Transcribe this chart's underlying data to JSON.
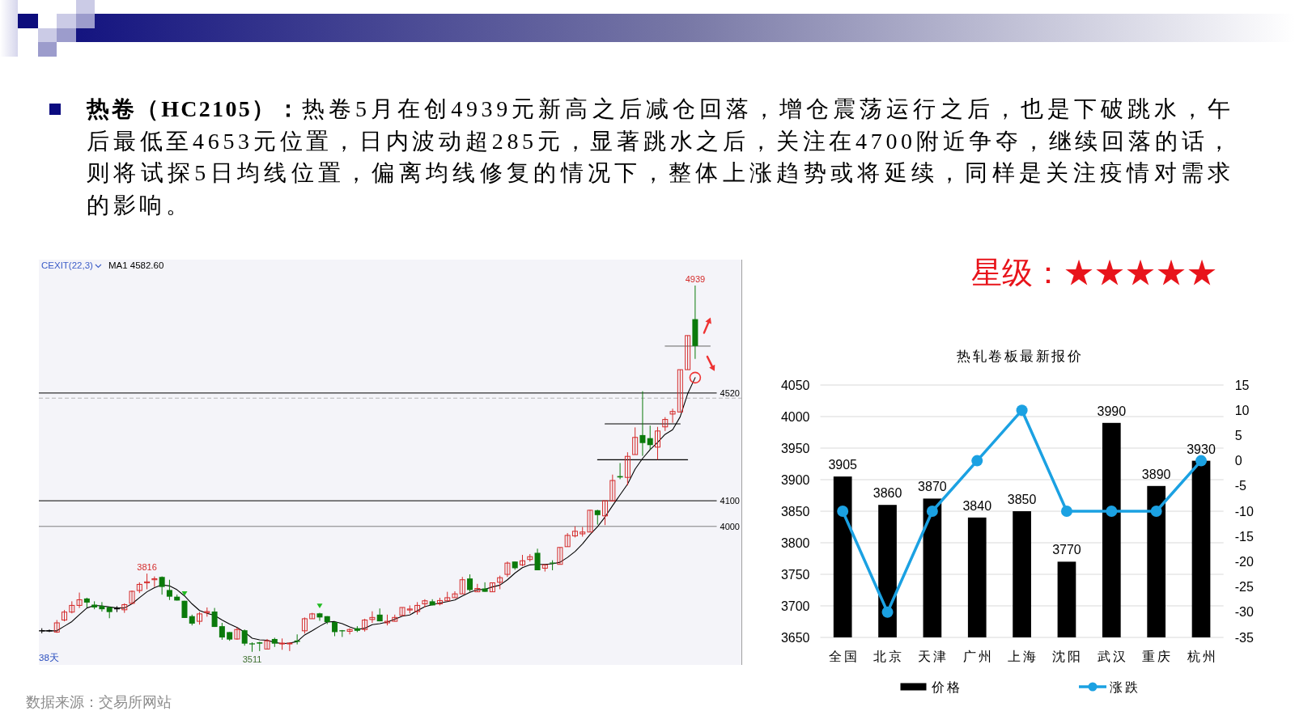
{
  "chart_data": [
    {
      "type": "other",
      "title": "热卷（HC2105）：",
      "annotations": [
        "热卷5月在创4939元新高之后减仓回落，增仓震荡运行之后，也是下破跳水，午后最低至4653元位置，日内波动超285元，显著跳水之后，关注在4700附近争夺，继续回落的话，则将试探5日均线位置，偏离均线修复的情况下，整体上涨趋势或将延续，同样是关注疫情对需求的影响。",
        "星级：★★★★★",
        "数据来源：交易所网站"
      ]
    },
    {
      "type": "candlestick",
      "title": "CEXIT(22,3)",
      "xlabel": "38天",
      "categories": [
        null,
        null,
        null,
        null,
        null,
        null,
        null,
        null,
        null,
        null,
        null,
        null,
        null,
        null,
        null,
        null,
        null,
        null,
        null,
        null,
        null,
        null,
        null,
        null,
        null,
        null,
        null,
        null,
        null,
        null,
        null,
        null,
        null,
        null,
        null,
        null,
        null,
        null,
        null,
        null,
        null,
        null,
        null,
        null,
        null,
        null,
        null,
        null,
        null,
        null,
        null,
        null,
        null,
        null,
        null,
        null,
        null,
        null,
        null,
        null,
        null,
        null,
        null,
        null,
        null,
        null,
        null,
        null,
        null,
        null,
        null,
        null,
        null,
        null,
        null,
        null,
        null,
        null,
        null,
        null,
        null,
        null,
        null,
        null,
        null,
        null,
        null,
        null,
        null,
        null,
        null,
        null
      ],
      "ohlc": [
        [
          3593,
          3603,
          3583,
          3593
        ],
        [
          3593,
          3598,
          3588,
          3593
        ],
        [
          3588,
          3635,
          3585,
          3624
        ],
        [
          3635,
          3674,
          3630,
          3666
        ],
        [
          3666,
          3708,
          3661,
          3692
        ],
        [
          3692,
          3742,
          3682,
          3714
        ],
        [
          3719,
          3722,
          3684,
          3703
        ],
        [
          3695,
          3708,
          3677,
          3684
        ],
        [
          3690,
          3705,
          3668,
          3677
        ],
        [
          3685,
          3687,
          3642,
          3666
        ],
        [
          3679,
          3689,
          3666,
          3679
        ],
        [
          3675,
          3700,
          3663,
          3695
        ],
        [
          3700,
          3750,
          3697,
          3747
        ],
        [
          3750,
          3782,
          3740,
          3774
        ],
        [
          3780,
          3816,
          3755,
          3784
        ],
        [
          3792,
          3805,
          3764,
          3796
        ],
        [
          3803,
          3805,
          3734,
          3764
        ],
        [
          3752,
          3792,
          3713,
          3726
        ],
        [
          3726,
          3734,
          3711,
          3711
        ],
        [
          3710,
          3710,
          3643,
          3643
        ],
        [
          3650,
          3656,
          3614,
          3621
        ],
        [
          3630,
          3666,
          3617,
          3659
        ],
        [
          3664,
          3684,
          3648,
          3668
        ],
        [
          3668,
          3682,
          3608,
          3608
        ],
        [
          3611,
          3624,
          3558,
          3567
        ],
        [
          3588,
          3588,
          3554,
          3559
        ],
        [
          3561,
          3606,
          3558,
          3598
        ],
        [
          3595,
          3598,
          3535,
          3543
        ],
        [
          3544,
          3548,
          3511,
          3540
        ],
        [
          3548,
          3550,
          3514,
          3543
        ],
        [
          3522,
          3561,
          3522,
          3554
        ],
        [
          3561,
          3566,
          3530,
          3543
        ],
        [
          3542,
          3563,
          3519,
          3545
        ],
        [
          3542,
          3548,
          3514,
          3545
        ],
        [
          3555,
          3579,
          3540,
          3550
        ],
        [
          3593,
          3645,
          3582,
          3640
        ],
        [
          3640,
          3663,
          3640,
          3659
        ],
        [
          3661,
          3663,
          3632,
          3645
        ],
        [
          3650,
          3650,
          3619,
          3627
        ],
        [
          3627,
          3629,
          3572,
          3588
        ],
        [
          3595,
          3596,
          3569,
          3591
        ],
        [
          3591,
          3603,
          3579,
          3598
        ],
        [
          3603,
          3611,
          3588,
          3593
        ],
        [
          3598,
          3640,
          3590,
          3635
        ],
        [
          3637,
          3669,
          3624,
          3645
        ],
        [
          3656,
          3680,
          3630,
          3630
        ],
        [
          3624,
          3656,
          3614,
          3630
        ],
        [
          3630,
          3656,
          3630,
          3645
        ],
        [
          3653,
          3684,
          3653,
          3684
        ],
        [
          3674,
          3692,
          3661,
          3678
        ],
        [
          3668,
          3705,
          3656,
          3692
        ],
        [
          3698,
          3716,
          3684,
          3710
        ],
        [
          3708,
          3716,
          3692,
          3692
        ],
        [
          3698,
          3722,
          3692,
          3711
        ],
        [
          3710,
          3745,
          3710,
          3722
        ],
        [
          3722,
          3747,
          3722,
          3737
        ],
        [
          3737,
          3803,
          3737,
          3792
        ],
        [
          3797,
          3813,
          3745,
          3752
        ],
        [
          3745,
          3776,
          3745,
          3758
        ],
        [
          3758,
          3782,
          3745,
          3745
        ],
        [
          3745,
          3780,
          3745,
          3780
        ],
        [
          3782,
          3808,
          3755,
          3800
        ],
        [
          3813,
          3863,
          3803,
          3857
        ],
        [
          3863,
          3863,
          3831,
          3837
        ],
        [
          3850,
          3889,
          3845,
          3866
        ],
        [
          3871,
          3892,
          3863,
          3882
        ],
        [
          3897,
          3913,
          3829,
          3829
        ],
        [
          3837,
          3850,
          3824,
          3850
        ],
        [
          3859,
          3868,
          3829,
          3855
        ],
        [
          3852,
          3918,
          3852,
          3918
        ],
        [
          3921,
          3974,
          3921,
          3965
        ],
        [
          3963,
          4000,
          3957,
          3981
        ],
        [
          3971,
          3998,
          3960,
          3978
        ],
        [
          3978,
          4065,
          3978,
          4063
        ],
        [
          4063,
          4065,
          4007,
          4044
        ],
        [
          4041,
          4100,
          4005,
          4100
        ],
        [
          4099,
          4202,
          4099,
          4179
        ],
        [
          4196,
          4247,
          4184,
          4191
        ],
        [
          4191,
          4289,
          4160,
          4273
        ],
        [
          4280,
          4386,
          4280,
          4347
        ],
        [
          4356,
          4527,
          4275,
          4325
        ],
        [
          4344,
          4393,
          4299,
          4317
        ],
        [
          4309,
          4388,
          4260,
          4372
        ],
        [
          4388,
          4426,
          4372,
          4417
        ],
        [
          4438,
          4459,
          4404,
          4448
        ],
        [
          4446,
          4611,
          4446,
          4611
        ],
        [
          4611,
          4744,
          4611,
          4744
        ],
        [
          4808,
          4939,
          4653,
          4703
        ],
        null,
        null,
        null,
        null
      ],
      "colors": [
        "#000000",
        "#000000",
        "#d42a2a",
        "#d42a2a",
        "#d42a2a",
        "#d42a2a",
        "#0b7a0b",
        "#0b7a0b",
        "#0b7a0b",
        "#0b7a0b",
        "#000000",
        "#d42a2a",
        "#d42a2a",
        "#d42a2a",
        "#d42a2a",
        "#d42a2a",
        "#0b7a0b",
        "#0b7a0b",
        "#0b7a0b",
        "#0b7a0b",
        "#0b7a0b",
        "#d42a2a",
        "#d42a2a",
        "#0b7a0b",
        "#0b7a0b",
        "#0b7a0b",
        "#d42a2a",
        "#0b7a0b",
        "#0b7a0b",
        "#0b7a0b",
        "#d42a2a",
        "#0b7a0b",
        "#d42a2a",
        "#d42a2a",
        "#0b7a0b",
        "#d42a2a",
        "#d42a2a",
        "#0b7a0b",
        "#0b7a0b",
        "#0b7a0b",
        "#0b7a0b",
        "#d42a2a",
        "#0b7a0b",
        "#d42a2a",
        "#d42a2a",
        "#0b7a0b",
        "#d42a2a",
        "#d42a2a",
        "#d42a2a",
        "#d42a2a",
        "#d42a2a",
        "#d42a2a",
        "#0b7a0b",
        "#d42a2a",
        "#d42a2a",
        "#d42a2a",
        "#d42a2a",
        "#0b7a0b",
        "#d42a2a",
        "#0b7a0b",
        "#d42a2a",
        "#d42a2a",
        "#d42a2a",
        "#0b7a0b",
        "#d42a2a",
        "#d42a2a",
        "#0b7a0b",
        "#d42a2a",
        "#0b7a0b",
        "#d42a2a",
        "#d42a2a",
        "#d42a2a",
        "#d42a2a",
        "#d42a2a",
        "#0b7a0b",
        "#d42a2a",
        "#d42a2a",
        "#0b7a0b",
        "#d42a2a",
        "#d42a2a",
        "#0b7a0b",
        "#0b7a0b",
        "#d42a2a",
        "#d42a2a",
        "#d42a2a",
        "#d42a2a",
        "#d42a2a",
        "#0b7a0b",
        null,
        null,
        null,
        null
      ],
      "series": [
        {
          "type": "line",
          "color": "#000000",
          "values": [
            3593,
            3593,
            3593,
            3611,
            3629,
            3656,
            3682,
            3692,
            3690,
            3686,
            3682,
            3682,
            3698,
            3722,
            3745,
            3761,
            3772,
            3768,
            3753,
            3729,
            3698,
            3672,
            3661,
            3653,
            3635,
            3619,
            3606,
            3588,
            3564,
            3558,
            3556,
            3548,
            3543,
            3545,
            3551,
            3577,
            3593,
            3611,
            3627,
            3629,
            3621,
            3608,
            3598,
            3603,
            3617,
            3621,
            3627,
            3638,
            3650,
            3655,
            3671,
            3687,
            3695,
            3701,
            3707,
            3713,
            3729,
            3743,
            3753,
            3755,
            3764,
            3771,
            3792,
            3818,
            3839,
            3850,
            3852,
            3852,
            3854,
            3860,
            3879,
            3902,
            3932,
            3968,
            3999,
            4037,
            4081,
            4123,
            4165,
            4223,
            4265,
            4299,
            4328,
            4359,
            4377,
            4427,
            4517,
            4580,
            null,
            null,
            null,
            null
          ]
        },
        {
          "type": "line",
          "color": "#000000",
          "values": [
            null,
            null,
            null,
            null,
            null,
            null,
            null,
            null,
            null,
            null,
            null,
            null,
            null,
            null,
            null,
            null,
            null,
            null,
            null,
            null,
            null,
            null,
            null,
            null,
            null,
            null,
            null,
            null,
            null,
            null,
            null,
            null,
            null,
            null,
            null,
            null,
            null,
            null,
            null,
            null,
            null,
            null,
            null,
            null,
            null,
            null,
            null,
            null,
            null,
            null,
            null,
            null,
            null,
            null,
            null,
            null,
            null,
            null,
            null,
            null,
            null,
            null,
            null,
            null,
            null,
            null,
            null,
            null,
            null,
            null,
            null,
            null,
            null,
            null,
            4260,
            4260,
            4260,
            4260,
            4260,
            4260,
            4260,
            4260,
            4260,
            4260,
            4260,
            4260,
            4260,
            null,
            null,
            null,
            null,
            null
          ]
        },
        {
          "type": "line",
          "color": "#000000",
          "values": [
            null,
            null,
            null,
            null,
            null,
            null,
            null,
            null,
            null,
            null,
            null,
            null,
            null,
            null,
            null,
            null,
            null,
            null,
            null,
            null,
            null,
            null,
            null,
            null,
            null,
            null,
            null,
            null,
            null,
            null,
            null,
            null,
            null,
            null,
            null,
            null,
            null,
            null,
            null,
            null,
            null,
            null,
            null,
            null,
            null,
            null,
            null,
            null,
            null,
            null,
            null,
            null,
            null,
            null,
            null,
            null,
            null,
            null,
            null,
            null,
            null,
            null,
            null,
            null,
            null,
            null,
            null,
            null,
            null,
            null,
            null,
            null,
            null,
            null,
            null,
            4400,
            4400,
            4400,
            4400,
            4400,
            4400,
            4400,
            4400,
            4400,
            4400,
            4400,
            null,
            null,
            null,
            null,
            null,
            null
          ]
        },
        {
          "type": "line",
          "color": "#808080",
          "values": [
            null,
            null,
            null,
            null,
            null,
            null,
            null,
            null,
            null,
            null,
            null,
            null,
            null,
            null,
            null,
            null,
            null,
            null,
            null,
            null,
            null,
            null,
            null,
            null,
            null,
            null,
            null,
            null,
            null,
            null,
            null,
            null,
            null,
            null,
            null,
            null,
            null,
            null,
            null,
            null,
            null,
            null,
            null,
            null,
            null,
            null,
            null,
            null,
            null,
            null,
            null,
            null,
            null,
            null,
            null,
            null,
            null,
            null,
            null,
            null,
            null,
            null,
            null,
            null,
            null,
            null,
            null,
            null,
            null,
            null,
            null,
            null,
            null,
            null,
            null,
            null,
            null,
            null,
            null,
            null,
            null,
            null,
            null,
            4703,
            4703,
            4703,
            4703,
            4703,
            4703,
            4703,
            null,
            null
          ]
        },
        {
          "type": "scatter",
          "color": "#22bb22",
          "marker": "triangle",
          "values": [
            null,
            null,
            null,
            null,
            null,
            null,
            null,
            null,
            null,
            null,
            null,
            null,
            null,
            null,
            null,
            null,
            null,
            null,
            null,
            3740,
            null,
            null,
            null,
            null,
            null,
            null,
            null,
            null,
            null,
            null,
            null,
            null,
            null,
            null,
            null,
            null,
            null,
            3692,
            null,
            null,
            null,
            null,
            null,
            null,
            null,
            null,
            null,
            null,
            null,
            null,
            null,
            null,
            null,
            null,
            null,
            null,
            null,
            null,
            null,
            null,
            null,
            null,
            null,
            null,
            null,
            null,
            null,
            null,
            null,
            null,
            null,
            null,
            null,
            null,
            null,
            null,
            null,
            null,
            null,
            null,
            null,
            null,
            null,
            null,
            null,
            null,
            null,
            null,
            null,
            null,
            null,
            null
          ]
        }
      ],
      "ylim": [
        3460,
        5040
      ],
      "yticks": [
        4000,
        4100,
        4520
      ],
      "ref_lines": [
        {
          "axis": "y",
          "value": 4520,
          "color": "#000000"
        },
        {
          "axis": "y",
          "value": 4500,
          "color": "#b4b4b4",
          "line_style": "dashed"
        },
        {
          "axis": "y",
          "value": 4100,
          "color": "#000000"
        },
        {
          "axis": "y",
          "value": 4000,
          "color": "#808080"
        }
      ],
      "annotations": [
        "MA1 4582.60",
        {
          "text": "4939",
          "y": 4939
        },
        {
          "text": "3816",
          "y": 3816
        },
        {
          "text": "3511",
          "y": 3511
        }
      ]
    },
    {
      "type": "bar",
      "title": "热轧卷板最新报价",
      "categories": [
        "全国",
        "北京",
        "天津",
        "广州",
        "上海",
        "沈阳",
        "武汉",
        "重庆",
        "杭州"
      ],
      "series": [
        {
          "name": "价格",
          "type": "bar",
          "color": "#000000",
          "values": [
            3905,
            3860,
            3870,
            3840,
            3850,
            3770,
            3990,
            3890,
            3930
          ],
          "value_labels": [
            "3905",
            "3860",
            "3870",
            "3840",
            "3850",
            "3770",
            "3990",
            "3890",
            "3930"
          ]
        },
        {
          "name": "涨跌",
          "type": "line",
          "axis": "y2",
          "color": "#1ba1e2",
          "marker": "circle",
          "values": [
            -10,
            -30,
            -10,
            0,
            10,
            -10,
            -10,
            -10,
            0
          ]
        }
      ],
      "ylim": [
        3650,
        4050
      ],
      "yticks": [
        3650,
        3700,
        3750,
        3800,
        3850,
        3900,
        3950,
        4000,
        4050
      ],
      "y2lim": [
        -35,
        15
      ],
      "y2ticks": [
        -35,
        -30,
        -25,
        -20,
        -15,
        -10,
        -5,
        0,
        5,
        10,
        15
      ],
      "grid": "y",
      "legend": "bottom"
    }
  ]
}
